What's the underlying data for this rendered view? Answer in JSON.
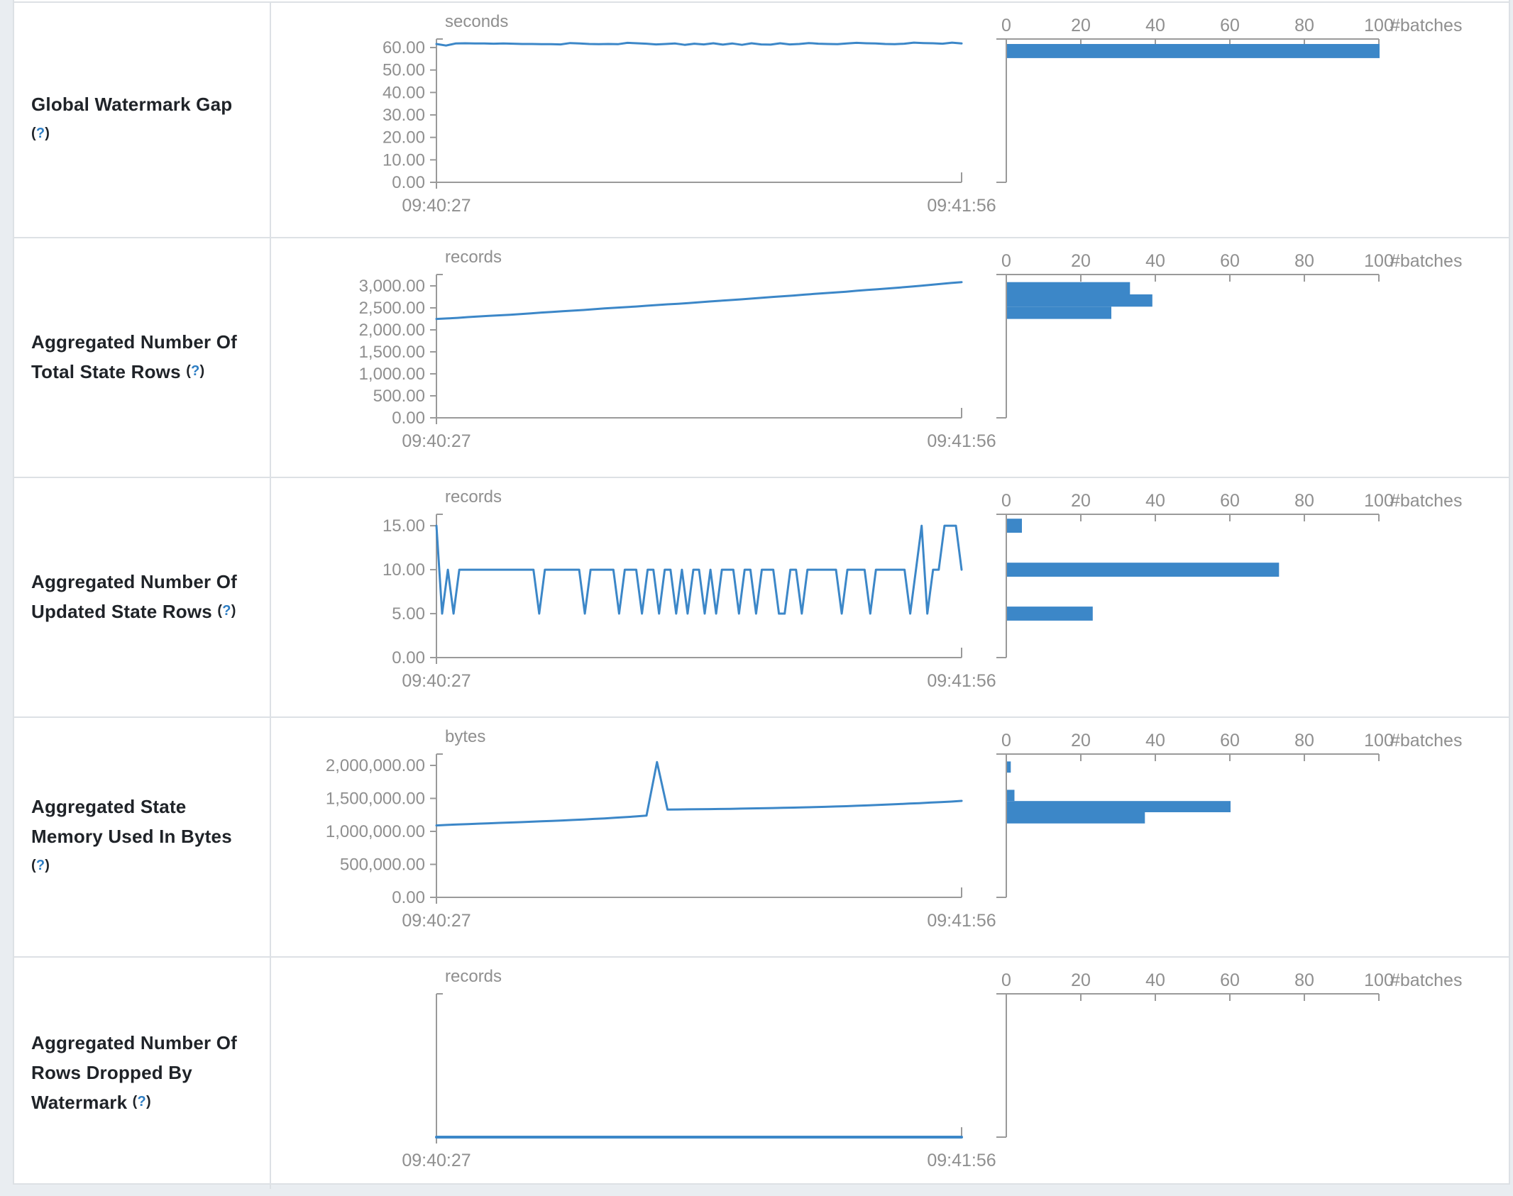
{
  "colors": {
    "accent": "#3c87c8",
    "axis": "#9a9a9a",
    "muted_text": "#8f8f8f",
    "title_text": "#1f2328",
    "help_link": "#2d7dc3",
    "border": "#dde1e5",
    "page_bg": "#e9edf1",
    "cell_bg": "#ffffff"
  },
  "help": {
    "open": "(",
    "q": "?",
    "close": ")"
  },
  "x_labels": [
    "09:40:27",
    "09:41:56"
  ],
  "hist": {
    "tick_values": [
      0,
      20,
      40,
      60,
      80,
      100
    ],
    "tick_labels": [
      "0",
      "20",
      "40",
      "60",
      "80",
      "100"
    ],
    "unit": "#batches"
  },
  "rows": [
    {
      "title_lines": [
        "Global Watermark Gap"
      ],
      "help_own_line": true,
      "help_line_index": -1,
      "unit": "seconds",
      "y_axis_max": 63.8,
      "y_ticks": [
        {
          "v": 60,
          "label": "60.00"
        },
        {
          "v": 50,
          "label": "50.00"
        },
        {
          "v": 40,
          "label": "40.00"
        },
        {
          "v": 30,
          "label": "30.00"
        },
        {
          "v": 20,
          "label": "20.00"
        },
        {
          "v": 10,
          "label": "10.00"
        },
        {
          "v": 0,
          "label": "0.00"
        }
      ],
      "timeline": [
        61.6,
        60.9,
        61.8,
        61.9,
        61.8,
        61.8,
        61.7,
        61.8,
        61.7,
        61.6,
        61.6,
        61.5,
        61.5,
        61.4,
        62.0,
        61.8,
        61.6,
        61.5,
        61.6,
        61.5,
        62.1,
        61.9,
        61.7,
        61.4,
        61.6,
        61.8,
        61.2,
        61.7,
        61.4,
        61.9,
        61.3,
        61.8,
        61.2,
        61.9,
        61.4,
        61.3,
        61.9,
        61.4,
        61.6,
        62.0,
        61.7,
        61.6,
        61.5,
        61.8,
        62.1,
        61.9,
        61.8,
        61.6,
        61.5,
        61.7,
        62.2,
        62.0,
        61.9,
        61.7,
        62.2,
        61.8
      ],
      "histogram_bars": [
        {
          "hi": 61.6,
          "lo": 55.3,
          "count": 100
        }
      ],
      "flat_zero": false
    },
    {
      "title_lines": [
        "Aggregated Number Of",
        "Total State Rows"
      ],
      "help_own_line": false,
      "help_line_index": 1,
      "unit": "records",
      "y_axis_max": 3258,
      "y_ticks": [
        {
          "v": 3000,
          "label": "3,000.00"
        },
        {
          "v": 2500,
          "label": "2,500.00"
        },
        {
          "v": 2000,
          "label": "2,000.00"
        },
        {
          "v": 1500,
          "label": "1,500.00"
        },
        {
          "v": 1000,
          "label": "1,000.00"
        },
        {
          "v": 500,
          "label": "500.00"
        },
        {
          "v": 0,
          "label": "0.00"
        }
      ],
      "timeline": [
        2248,
        2259,
        2272,
        2290,
        2305,
        2318,
        2330,
        2344,
        2360,
        2376,
        2393,
        2408,
        2422,
        2437,
        2452,
        2470,
        2487,
        2502,
        2516,
        2530,
        2548,
        2565,
        2580,
        2594,
        2610,
        2628,
        2645,
        2662,
        2678,
        2694,
        2712,
        2730,
        2748,
        2764,
        2780,
        2800,
        2818,
        2836,
        2852,
        2868,
        2888,
        2906,
        2924,
        2942,
        2960,
        2980,
        3000,
        3022,
        3044,
        3066,
        3085
      ],
      "histogram_bars": [
        {
          "hi": 3085,
          "lo": 2806,
          "count": 33
        },
        {
          "hi": 2806,
          "lo": 2527,
          "count": 39
        },
        {
          "hi": 2527,
          "lo": 2248,
          "count": 28
        }
      ],
      "flat_zero": false
    },
    {
      "title_lines": [
        "Aggregated Number Of",
        "Updated State Rows"
      ],
      "help_own_line": false,
      "help_line_index": 1,
      "unit": "records",
      "y_axis_max": 16.3,
      "y_ticks": [
        {
          "v": 15,
          "label": "15.00"
        },
        {
          "v": 10,
          "label": "10.00"
        },
        {
          "v": 5,
          "label": "5.00"
        },
        {
          "v": 0,
          "label": "0.00"
        }
      ],
      "timeline": [
        15,
        5,
        10,
        5,
        10,
        10,
        10,
        10,
        10,
        10,
        10,
        10,
        10,
        10,
        10,
        10,
        10,
        10,
        5,
        10,
        10,
        10,
        10,
        10,
        10,
        10,
        5,
        10,
        10,
        10,
        10,
        10,
        5,
        10,
        10,
        10,
        5,
        10,
        10,
        5,
        10,
        10,
        5,
        10,
        5,
        10,
        10,
        5,
        10,
        5,
        10,
        10,
        10,
        5,
        10,
        10,
        5,
        10,
        10,
        10,
        5,
        5,
        10,
        10,
        5,
        10,
        10,
        10,
        10,
        10,
        10,
        5,
        10,
        10,
        10,
        10,
        5,
        10,
        10,
        10,
        10,
        10,
        10,
        5,
        10,
        15,
        5,
        10,
        10,
        15,
        15,
        15,
        10
      ],
      "histogram_bars": [
        {
          "hi": 15.8,
          "lo": 14.2,
          "count": 4
        },
        {
          "hi": 10.8,
          "lo": 9.2,
          "count": 73
        },
        {
          "hi": 5.8,
          "lo": 4.2,
          "count": 23
        }
      ],
      "flat_zero": false
    },
    {
      "title_lines": [
        "Aggregated State",
        "Memory Used In Bytes"
      ],
      "help_own_line": true,
      "help_line_index": -1,
      "unit": "bytes",
      "y_axis_max": 2172000,
      "y_ticks": [
        {
          "v": 2000000,
          "label": "2,000,000.00"
        },
        {
          "v": 1500000,
          "label": "1,500,000.00"
        },
        {
          "v": 1000000,
          "label": "1,000,000.00"
        },
        {
          "v": 500000,
          "label": "500,000.00"
        },
        {
          "v": 0,
          "label": "0.00"
        }
      ],
      "timeline": [
        1090000,
        1098000,
        1105000,
        1111000,
        1117000,
        1123000,
        1129000,
        1134000,
        1140000,
        1146000,
        1153000,
        1159000,
        1166000,
        1173000,
        1181000,
        1189000,
        1197000,
        1206000,
        1216000,
        1227000,
        1239000,
        2050000,
        1330000,
        1332000,
        1334000,
        1336000,
        1338000,
        1340000,
        1342000,
        1345000,
        1348000,
        1351000,
        1354000,
        1357000,
        1360000,
        1364000,
        1368000,
        1372000,
        1377000,
        1382000,
        1388000,
        1394000,
        1400000,
        1407000,
        1414000,
        1421000,
        1428000,
        1436000,
        1444000,
        1452000,
        1462000
      ],
      "histogram_bars": [
        {
          "hi": 2060000,
          "lo": 1890000,
          "count": 1
        },
        {
          "hi": 1630000,
          "lo": 1460000,
          "count": 2
        },
        {
          "hi": 1460000,
          "lo": 1290000,
          "count": 60
        },
        {
          "hi": 1290000,
          "lo": 1120000,
          "count": 37
        }
      ],
      "flat_zero": false
    },
    {
      "title_lines": [
        "Aggregated Number Of",
        "Rows Dropped By",
        "Watermark"
      ],
      "help_own_line": false,
      "help_line_index": 2,
      "unit": "records",
      "y_axis_max": 1,
      "y_ticks": [],
      "timeline": [
        0,
        0
      ],
      "histogram_bars": [],
      "flat_zero": true
    }
  ]
}
